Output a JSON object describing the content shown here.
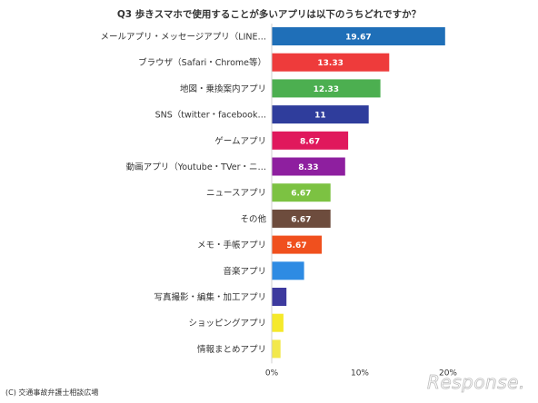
{
  "chart_data": {
    "type": "bar",
    "orientation": "horizontal",
    "title": "Q3 歩きスマホで使用することが多いアプリは以下のうちどれですか？",
    "categories": [
      "メールアプリ・メッセージアプリ（LINE…",
      "ブラウザ（Safari・Chrome等）",
      "地図・乗換案内アプリ",
      "SNS（twitter・facebook…",
      "ゲームアプリ",
      "動画アプリ（Youtube・TVer・ニ…",
      "ニュースアプリ",
      "その他",
      "メモ・手帳アプリ",
      "音楽アプリ",
      "写真撮影・編集・加工アプリ",
      "ショッピングアプリ",
      "情報まとめアプリ"
    ],
    "values": [
      19.67,
      13.33,
      12.33,
      11,
      8.67,
      8.33,
      6.67,
      6.67,
      5.67,
      3.67,
      1.67,
      1.33,
      1.0
    ],
    "value_labels": [
      "19.67",
      "13.33",
      "12.33",
      "11",
      "8.67",
      "8.33",
      "6.67",
      "6.67",
      "5.67",
      "",
      "",
      "",
      ""
    ],
    "colors": [
      "#1f6fb8",
      "#ee3b3b",
      "#4caf50",
      "#2f3d9c",
      "#e0185c",
      "#8e1f9f",
      "#7cc242",
      "#6d4c3d",
      "#f0501e",
      "#2e8be3",
      "#3d3a9e",
      "#f5e92b",
      "#f2e84b"
    ],
    "x_ticks": [
      "0%",
      "10%",
      "20%"
    ],
    "xlim": [
      0,
      20
    ],
    "grid": false
  },
  "credit": "(C) 交通事故弁護士相談広場",
  "watermark": "Response."
}
